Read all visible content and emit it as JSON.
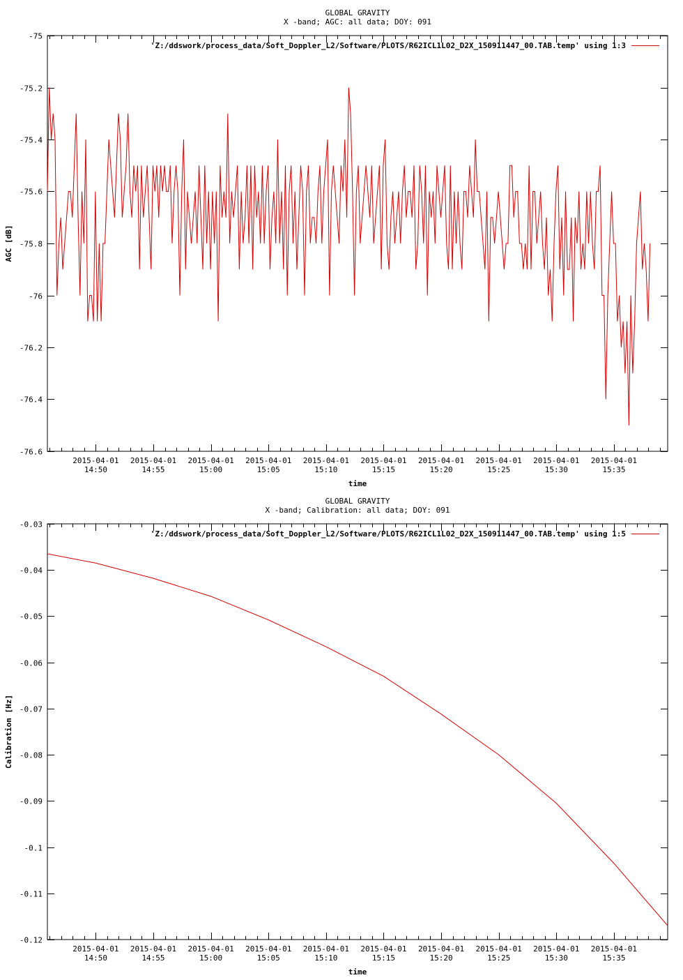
{
  "chart_data": [
    {
      "type": "line",
      "title": "GLOBAL GRAVITY",
      "subtitle": "X -band; AGC: all data; DOY: 091",
      "xlabel": "time",
      "ylabel": "AGC [dB]",
      "xlim": [
        "2015-04-01 14:45:48",
        "2015-04-01 15:39:40"
      ],
      "ylim": [
        -76.6,
        -75
      ],
      "xtick_dates": [
        "2015-04-01",
        "2015-04-01",
        "2015-04-01",
        "2015-04-01",
        "2015-04-01",
        "2015-04-01",
        "2015-04-01",
        "2015-04-01",
        "2015-04-01",
        "2015-04-01"
      ],
      "xtick_times": [
        "14:50",
        "14:55",
        "15:00",
        "15:05",
        "15:10",
        "15:15",
        "15:20",
        "15:25",
        "15:30",
        "15:35"
      ],
      "yticks": [
        "-75",
        "-75.2",
        "-75.4",
        "-75.6",
        "-75.8",
        "-76",
        "-76.2",
        "-76.4",
        "-76.6"
      ],
      "series": [
        {
          "name": "'Z:/ddswork/process_data/Soft_Doppler_L2/Software/PLOTS/R62ICL1L02_D2X_150911447_00.TAB.temp' using 1:3",
          "color": "#d40000",
          "x_start": "2015-04-01 14:45:48",
          "x_step_seconds": 10,
          "y": [
            -75.6,
            -75.2,
            -75.4,
            -75.3,
            -75.4,
            -76.0,
            -75.8,
            -75.7,
            -75.9,
            -75.8,
            -75.7,
            -75.6,
            -75.6,
            -75.7,
            -75.5,
            -75.3,
            -75.7,
            -76.0,
            -75.6,
            -75.8,
            -75.4,
            -76.1,
            -76.0,
            -76.0,
            -76.1,
            -75.6,
            -76.1,
            -75.8,
            -76.1,
            -75.8,
            -75.8,
            -75.6,
            -75.4,
            -75.5,
            -75.6,
            -75.7,
            -75.5,
            -75.3,
            -75.4,
            -75.7,
            -75.6,
            -75.5,
            -75.3,
            -75.6,
            -75.7,
            -75.5,
            -75.6,
            -75.5,
            -75.9,
            -75.5,
            -75.7,
            -75.6,
            -75.5,
            -75.7,
            -75.9,
            -75.5,
            -75.6,
            -75.5,
            -75.7,
            -75.5,
            -75.6,
            -75.5,
            -75.6,
            -75.6,
            -75.5,
            -75.8,
            -75.6,
            -75.5,
            -75.6,
            -76.0,
            -75.6,
            -75.4,
            -75.9,
            -75.6,
            -75.7,
            -75.8,
            -75.7,
            -75.6,
            -75.8,
            -75.5,
            -75.7,
            -75.9,
            -75.5,
            -75.8,
            -75.6,
            -75.9,
            -75.6,
            -75.8,
            -75.6,
            -76.1,
            -75.5,
            -75.7,
            -75.6,
            -75.7,
            -75.3,
            -75.8,
            -75.6,
            -75.7,
            -75.6,
            -75.5,
            -75.9,
            -75.6,
            -75.8,
            -75.7,
            -75.5,
            -75.8,
            -75.5,
            -75.9,
            -75.5,
            -75.7,
            -75.6,
            -75.8,
            -75.5,
            -75.8,
            -75.6,
            -75.5,
            -75.9,
            -75.7,
            -75.6,
            -75.8,
            -75.4,
            -75.8,
            -75.6,
            -75.9,
            -75.5,
            -76.0,
            -75.6,
            -75.5,
            -75.8,
            -75.6,
            -75.9,
            -75.7,
            -75.5,
            -75.6,
            -76.0,
            -75.6,
            -75.5,
            -75.8,
            -75.7,
            -75.7,
            -75.8,
            -75.6,
            -75.5,
            -75.8,
            -75.6,
            -75.5,
            -75.4,
            -76.0,
            -75.6,
            -75.5,
            -75.6,
            -75.7,
            -75.8,
            -75.5,
            -75.6,
            -75.4,
            -75.7,
            -75.2,
            -75.3,
            -75.6,
            -76.0,
            -75.6,
            -75.5,
            -75.8,
            -75.7,
            -75.6,
            -75.5,
            -75.6,
            -75.7,
            -75.5,
            -75.8,
            -75.7,
            -75.6,
            -75.5,
            -75.9,
            -75.5,
            -75.4,
            -75.8,
            -75.9,
            -75.7,
            -75.6,
            -75.8,
            -75.7,
            -75.6,
            -75.8,
            -75.6,
            -75.5,
            -75.7,
            -75.6,
            -75.6,
            -75.7,
            -75.5,
            -75.9,
            -75.8,
            -75.5,
            -75.6,
            -75.8,
            -75.5,
            -76.0,
            -75.6,
            -75.7,
            -75.6,
            -75.8,
            -75.5,
            -75.6,
            -75.7,
            -75.6,
            -75.5,
            -75.8,
            -75.9,
            -75.5,
            -75.9,
            -75.6,
            -75.8,
            -75.6,
            -75.8,
            -75.9,
            -75.6,
            -75.6,
            -75.7,
            -75.5,
            -75.6,
            -75.7,
            -75.4,
            -75.6,
            -75.6,
            -75.7,
            -75.8,
            -75.9,
            -75.6,
            -76.1,
            -75.7,
            -75.7,
            -75.8,
            -75.7,
            -75.6,
            -75.7,
            -75.8,
            -75.9,
            -75.8,
            -75.8,
            -75.5,
            -75.5,
            -75.7,
            -75.6,
            -75.6,
            -75.8,
            -75.8,
            -75.9,
            -75.8,
            -75.9,
            -75.5,
            -75.9,
            -75.6,
            -75.6,
            -75.8,
            -75.7,
            -75.6,
            -75.8,
            -75.9,
            -75.7,
            -76.0,
            -75.9,
            -76.1,
            -75.8,
            -75.6,
            -75.5,
            -75.9,
            -75.7,
            -76.0,
            -75.6,
            -75.9,
            -75.9,
            -75.7,
            -76.1,
            -75.7,
            -75.8,
            -75.6,
            -75.9,
            -75.8,
            -75.9,
            -75.6,
            -75.8,
            -75.6,
            -75.8,
            -75.9,
            -75.6,
            -75.6,
            -75.5,
            -76.0,
            -76.0,
            -76.4,
            -76.0,
            -75.8,
            -75.6,
            -75.8,
            -75.8,
            -76.1,
            -76.0,
            -76.2,
            -76.1,
            -76.3,
            -76.1,
            -76.5,
            -76.0,
            -76.3,
            -76.1,
            -75.8,
            -75.7,
            -75.6,
            -75.9,
            -75.8,
            -75.9,
            -76.1,
            -75.8
          ]
        }
      ]
    },
    {
      "type": "line",
      "title": "GLOBAL GRAVITY",
      "subtitle": "X -band; Calibration: all data; DOY: 091",
      "xlabel": "time",
      "ylabel": "Calibration [Hz]",
      "xlim": [
        "2015-04-01 14:45:48",
        "2015-04-01 15:39:40"
      ],
      "ylim": [
        -0.12,
        -0.03
      ],
      "xtick_dates": [
        "2015-04-01",
        "2015-04-01",
        "2015-04-01",
        "2015-04-01",
        "2015-04-01",
        "2015-04-01",
        "2015-04-01",
        "2015-04-01",
        "2015-04-01",
        "2015-04-01"
      ],
      "xtick_times": [
        "14:50",
        "14:55",
        "15:00",
        "15:05",
        "15:10",
        "15:15",
        "15:20",
        "15:25",
        "15:30",
        "15:35"
      ],
      "yticks": [
        "-0.03",
        "-0.04",
        "-0.05",
        "-0.06",
        "-0.07",
        "-0.08",
        "-0.09",
        "-0.1",
        "-0.11",
        "-0.12"
      ],
      "series": [
        {
          "name": "'Z:/ddswork/process_data/Soft_Doppler_L2/Software/PLOTS/R62ICL1L02_D2X_150911447_00.TAB.temp' using 1:5",
          "color": "#d40000",
          "x": [
            "2015-04-01 14:45:48",
            "2015-04-01 14:50:00",
            "2015-04-01 14:55:00",
            "2015-04-01 15:00:00",
            "2015-04-01 15:05:00",
            "2015-04-01 15:10:00",
            "2015-04-01 15:15:00",
            "2015-04-01 15:20:00",
            "2015-04-01 15:25:00",
            "2015-04-01 15:30:00",
            "2015-04-01 15:35:00",
            "2015-04-01 15:39:40"
          ],
          "y": [
            -0.0365,
            -0.0385,
            -0.0418,
            -0.0457,
            -0.0508,
            -0.0566,
            -0.063,
            -0.0712,
            -0.08,
            -0.0905,
            -0.1035,
            -0.117
          ]
        }
      ]
    }
  ]
}
